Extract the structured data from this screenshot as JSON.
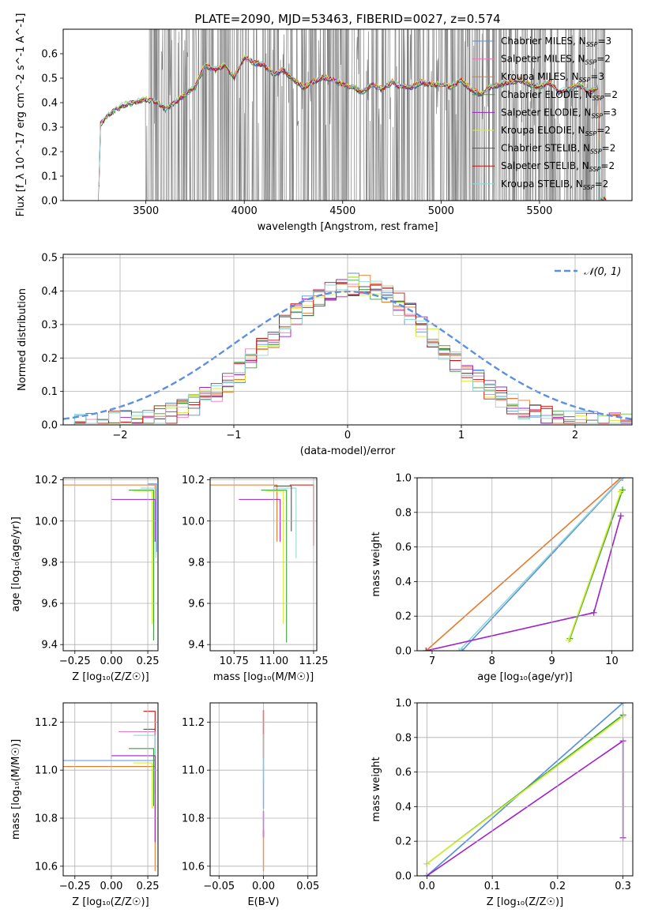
{
  "figure_title": "PLATE=2090, MJD=53463, FIBERID=0027, z=0.574",
  "colors": {
    "chabrier_miles": "#5b8fe0",
    "salpeter_miles": "#f07ab8",
    "kroupa_miles": "#e8782a",
    "chabrier_elodie": "#3aa23a",
    "salpeter_elodie": "#a020c8",
    "kroupa_elodie": "#d6ee30",
    "chabrier_stelib": "#555555",
    "salpeter_stelib": "#cc1111",
    "kroupa_stelib": "#8fd8d8",
    "data": "#808080",
    "normal": "#5b8fe0"
  },
  "chart_data": [
    {
      "id": "spectrum",
      "type": "line",
      "xlabel": "wavelength [Angstrom, rest frame]",
      "ylabel": "Flux [f_λ 10^-17 erg cm^-2 s^-1 A^-1]",
      "xlim": [
        3080,
        5970
      ],
      "ylim": [
        0.0,
        0.7
      ],
      "xticks": [
        3500,
        4000,
        4500,
        5000,
        5500
      ],
      "yticks": [
        0.0,
        0.1,
        0.2,
        0.3,
        0.4,
        0.5,
        0.6
      ],
      "ytick_labels": [
        "0.0",
        "0.1",
        "0.2",
        "0.3",
        "0.4",
        "0.5",
        "0.6"
      ],
      "legend_loc": "upper right",
      "legend": [
        {
          "label": "Chabrier MILES, N",
          "sub": "SSP",
          "tail": "=3",
          "color_key": "chabrier_miles"
        },
        {
          "label": "Salpeter MILES, N",
          "sub": "SSP",
          "tail": "=2",
          "color_key": "salpeter_miles"
        },
        {
          "label": "Kroupa MILES, N",
          "sub": "SSP",
          "tail": "=3",
          "color_key": "kroupa_miles"
        },
        {
          "label": "Chabrier ELODIE, N",
          "sub": "SSP",
          "tail": "=2",
          "color_key": "chabrier_elodie"
        },
        {
          "label": "Salpeter ELODIE, N",
          "sub": "SSP",
          "tail": "=3",
          "color_key": "salpeter_elodie"
        },
        {
          "label": "Kroupa ELODIE, N",
          "sub": "SSP",
          "tail": "=2",
          "color_key": "kroupa_elodie"
        },
        {
          "label": "Chabrier STELIB, N",
          "sub": "SSP",
          "tail": "=2",
          "color_key": "chabrier_stelib"
        },
        {
          "label": "Salpeter STELIB, N",
          "sub": "SSP",
          "tail": "=2",
          "color_key": "salpeter_stelib"
        },
        {
          "label": "Kroupa STELIB, N",
          "sub": "SSP",
          "tail": "=2",
          "color_key": "kroupa_stelib"
        }
      ],
      "model_continuum": {
        "x": [
          3260,
          3270,
          3300,
          3350,
          3400,
          3450,
          3500,
          3550,
          3600,
          3650,
          3700,
          3750,
          3800,
          3850,
          3900,
          3950,
          4000,
          4050,
          4100,
          4150,
          4200,
          4250,
          4300,
          4350,
          4400,
          4450,
          4500,
          4550,
          4600,
          4650,
          4700,
          4750,
          4800,
          4850,
          4900,
          4950,
          5000,
          5050,
          5100,
          5150,
          5200,
          5250,
          5300,
          5350,
          5400,
          5450,
          5500,
          5550,
          5600,
          5650,
          5700,
          5750,
          5800
        ],
        "y": [
          0.0,
          0.31,
          0.34,
          0.37,
          0.39,
          0.4,
          0.41,
          0.4,
          0.37,
          0.4,
          0.43,
          0.46,
          0.55,
          0.53,
          0.55,
          0.5,
          0.58,
          0.56,
          0.55,
          0.51,
          0.53,
          0.49,
          0.46,
          0.48,
          0.5,
          0.49,
          0.47,
          0.46,
          0.44,
          0.47,
          0.45,
          0.48,
          0.46,
          0.46,
          0.48,
          0.47,
          0.47,
          0.46,
          0.49,
          0.45,
          0.43,
          0.46,
          0.47,
          0.48,
          0.49,
          0.47,
          0.46,
          0.48,
          0.44,
          0.45,
          0.47,
          0.44,
          0.46
        ]
      },
      "data_noise_start": 3500
    },
    {
      "id": "residuals",
      "type": "step",
      "xlabel": "(data-model)/error",
      "ylabel": "Normed distribution",
      "xlim": [
        -2.5,
        2.5
      ],
      "ylim": [
        0.0,
        0.51
      ],
      "xticks": [
        -2,
        -1,
        0,
        1,
        2
      ],
      "xtick_labels": [
        "−2",
        "−1",
        "0",
        "1",
        "2"
      ],
      "yticks": [
        0.0,
        0.1,
        0.2,
        0.3,
        0.4,
        0.5
      ],
      "ytick_labels": [
        "0.0",
        "0.1",
        "0.2",
        "0.3",
        "0.4",
        "0.5"
      ],
      "legend_label": "𝒩(0, 1)",
      "legend_loc": "upper right"
    },
    {
      "id": "age_vs_Z",
      "type": "line",
      "xlabel": "Z [log₁₀(Z/Z☉)]",
      "ylabel": "age  [log₁₀(age/yr)]",
      "xlim": [
        -0.33,
        0.32
      ],
      "ylim": [
        9.37,
        10.21
      ],
      "xticks": [
        -0.25,
        0.0,
        0.25
      ],
      "xtick_labels": [
        "−0.25",
        "0.00",
        "0.25"
      ],
      "yticks": [
        9.4,
        9.6,
        9.8,
        10.0,
        10.2
      ],
      "ytick_labels": [
        "9.4",
        "9.6",
        "9.8",
        "10.0",
        "10.2"
      ],
      "series": [
        {
          "color_key": "kroupa_miles",
          "hx0": -0.33,
          "y": 10.175,
          "x": 0.3,
          "ybottom": 9.9
        },
        {
          "color_key": "chabrier_miles",
          "hx0": 0.25,
          "y": 10.18,
          "x": 0.31,
          "ybottom": 9.85
        },
        {
          "color_key": "kroupa_stelib",
          "hx0": 0.2,
          "y": 10.16,
          "x": 0.305,
          "ybottom": 9.82
        },
        {
          "color_key": "chabrier_elodie",
          "hx0": 0.12,
          "y": 10.15,
          "x": 0.29,
          "ybottom": 9.42
        },
        {
          "color_key": "kroupa_elodie",
          "hx0": 0.15,
          "y": 10.145,
          "x": 0.28,
          "ybottom": 9.5
        },
        {
          "color_key": "salpeter_elodie",
          "hx0": 0.0,
          "y": 10.105,
          "x": 0.3,
          "ybottom": 9.9
        }
      ]
    },
    {
      "id": "age_vs_mass",
      "type": "line",
      "xlabel": "mass [log₁₀(M/M☉)]",
      "xlim": [
        10.6,
        11.27
      ],
      "ylim": [
        9.37,
        10.21
      ],
      "xticks": [
        10.75,
        11.0,
        11.25
      ],
      "xtick_labels": [
        "10.75",
        "11.00",
        "11.25"
      ],
      "yticks": [
        9.4,
        9.6,
        9.8,
        10.0,
        10.2
      ],
      "ytick_labels": [
        "9.4",
        "9.6",
        "9.8",
        "10.0",
        "10.2"
      ],
      "series": [
        {
          "color_key": "kroupa_miles",
          "hx0": 10.6,
          "y": 10.175,
          "x": 11.02,
          "ybottom": 9.9
        },
        {
          "color_key": "salpeter_stelib",
          "hx0": 11.1,
          "y": 10.175,
          "x": 11.25,
          "ybottom": 9.88
        },
        {
          "color_key": "kroupa_stelib",
          "hx0": 11.0,
          "y": 10.16,
          "x": 11.14,
          "ybottom": 9.82
        },
        {
          "color_key": "chabrier_elodie",
          "hx0": 10.92,
          "y": 10.15,
          "x": 11.08,
          "ybottom": 9.41
        },
        {
          "color_key": "kroupa_elodie",
          "hx0": 10.95,
          "y": 10.145,
          "x": 11.06,
          "ybottom": 9.5
        },
        {
          "color_key": "salpeter_elodie",
          "hx0": 10.78,
          "y": 10.105,
          "x": 11.04,
          "ybottom": 9.9
        },
        {
          "color_key": "chabrier_stelib",
          "hx0": 11.0,
          "y": 10.17,
          "x": 11.11,
          "ybottom": 9.95
        }
      ]
    },
    {
      "id": "cum_age",
      "type": "line",
      "xlabel": "age  [log₁₀(age/yr)]",
      "ylabel": "mass weight",
      "xlim": [
        6.75,
        10.35
      ],
      "ylim": [
        0.0,
        1.0
      ],
      "xticks": [
        7,
        8,
        9,
        10
      ],
      "yticks": [
        0.0,
        0.2,
        0.4,
        0.6,
        0.8,
        1.0
      ],
      "ytick_labels": [
        "0.0",
        "0.2",
        "0.4",
        "0.6",
        "0.8",
        "1.0"
      ],
      "series": [
        {
          "color_key": "kroupa_miles",
          "x": [
            6.9,
            10.15
          ],
          "y": [
            0.0,
            1.0
          ]
        },
        {
          "color_key": "chabrier_miles",
          "x": [
            7.5,
            10.18
          ],
          "y": [
            0.0,
            1.0
          ]
        },
        {
          "color_key": "kroupa_stelib",
          "x": [
            7.45,
            10.17
          ],
          "y": [
            0.0,
            1.0
          ]
        },
        {
          "color_key": "chabrier_elodie",
          "x": [
            9.3,
            10.18
          ],
          "y": [
            0.07,
            0.93
          ]
        },
        {
          "color_key": "kroupa_elodie",
          "x": [
            9.28,
            10.15
          ],
          "y": [
            0.06,
            0.92
          ]
        },
        {
          "color_key": "salpeter_elodie",
          "x": [
            6.9,
            9.7,
            10.15
          ],
          "y": [
            0.0,
            0.22,
            0.78
          ]
        }
      ]
    },
    {
      "id": "mass_vs_Z",
      "type": "line",
      "xlabel": "Z [log₁₀(Z/Z☉)]",
      "ylabel": "mass [log₁₀(M/M☉)]",
      "xlim": [
        -0.33,
        0.32
      ],
      "ylim": [
        10.56,
        11.28
      ],
      "xticks": [
        -0.25,
        0.0,
        0.25
      ],
      "xtick_labels": [
        "−0.25",
        "0.00",
        "0.25"
      ],
      "yticks": [
        10.6,
        10.8,
        11.0,
        11.2
      ],
      "ytick_labels": [
        "10.6",
        "10.8",
        "11.0",
        "11.2"
      ],
      "series": [
        {
          "color_key": "chabrier_miles",
          "hx0": -0.33,
          "y": 11.04,
          "x": 0.3,
          "ybottom": 10.9
        },
        {
          "color_key": "kroupa_miles",
          "hx0": -0.33,
          "y": 11.015,
          "x": 0.3,
          "ybottom": 10.58
        },
        {
          "color_key": "salpeter_stelib",
          "hx0": 0.22,
          "y": 11.245,
          "x": 0.3,
          "ybottom": 11.0
        },
        {
          "color_key": "chabrier_stelib",
          "hx0": 0.22,
          "y": 11.17,
          "x": 0.3,
          "ybottom": 11.0
        },
        {
          "color_key": "salpeter_miles",
          "hx0": 0.05,
          "y": 11.16,
          "x": 0.3,
          "ybottom": 11.0
        },
        {
          "color_key": "kroupa_stelib",
          "hx0": 0.15,
          "y": 11.145,
          "x": 0.3,
          "ybottom": 10.95
        },
        {
          "color_key": "chabrier_elodie",
          "hx0": 0.12,
          "y": 11.09,
          "x": 0.29,
          "ybottom": 10.85
        },
        {
          "color_key": "salpeter_elodie",
          "hx0": 0.0,
          "y": 11.06,
          "x": 0.3,
          "ybottom": 10.7
        },
        {
          "color_key": "kroupa_elodie",
          "hx0": 0.15,
          "y": 11.03,
          "x": 0.28,
          "ybottom": 10.84
        }
      ]
    },
    {
      "id": "mass_vs_ebv",
      "type": "line",
      "xlabel": "E(B-V)",
      "xlim": [
        -0.06,
        0.06
      ],
      "ylim": [
        10.56,
        11.28
      ],
      "xticks": [
        -0.05,
        0.0,
        0.05
      ],
      "xtick_labels": [
        "−0.05",
        "0.00",
        "0.05"
      ],
      "yticks": [
        10.6,
        10.8,
        11.0,
        11.2
      ],
      "ytick_labels": [
        "10.6",
        "10.8",
        "11.0",
        "11.2"
      ],
      "series": [
        {
          "color_key": "kroupa_miles",
          "x": 0.0,
          "y": [
            10.58,
            10.75
          ]
        },
        {
          "color_key": "salpeter_elodie",
          "x": 0.0,
          "y": [
            10.72,
            10.83
          ]
        },
        {
          "color_key": "chabrier_miles",
          "x": 0.0,
          "y": [
            10.84,
            11.05
          ]
        },
        {
          "color_key": "salpeter_stelib",
          "x": 0.0,
          "y": [
            11.05,
            11.25
          ]
        },
        {
          "color_key": "kroupa_stelib",
          "x": 0.0,
          "y": [
            10.95,
            11.15
          ]
        }
      ]
    },
    {
      "id": "cum_Z",
      "type": "line",
      "xlabel": "Z [log₁₀(Z/Z☉)]",
      "ylabel": "mass weight",
      "xlim": [
        -0.015,
        0.315
      ],
      "ylim": [
        0.0,
        1.0
      ],
      "xticks": [
        0.0,
        0.1,
        0.2,
        0.3
      ],
      "xtick_labels": [
        "0.0",
        "0.1",
        "0.2",
        "0.3"
      ],
      "yticks": [
        0.0,
        0.2,
        0.4,
        0.6,
        0.8,
        1.0
      ],
      "ytick_labels": [
        "0.0",
        "0.2",
        "0.4",
        "0.6",
        "0.8",
        "1.0"
      ],
      "series": [
        {
          "color_key": "kroupa_stelib",
          "x": [
            0.0,
            0.3
          ],
          "y": [
            0.0,
            1.0
          ]
        },
        {
          "color_key": "chabrier_miles",
          "x": [
            0.0,
            0.3
          ],
          "y": [
            0.0,
            1.0
          ]
        },
        {
          "color_key": "chabrier_elodie",
          "x": [
            0.0,
            0.3
          ],
          "y": [
            0.07,
            0.93
          ]
        },
        {
          "color_key": "kroupa_elodie",
          "x": [
            0.0,
            0.3
          ],
          "y": [
            0.07,
            0.92
          ]
        },
        {
          "color_key": "salpeter_elodie",
          "x": [
            0.0,
            0.3,
            0.3
          ],
          "y": [
            0.0,
            0.78,
            0.22
          ]
        }
      ]
    }
  ]
}
